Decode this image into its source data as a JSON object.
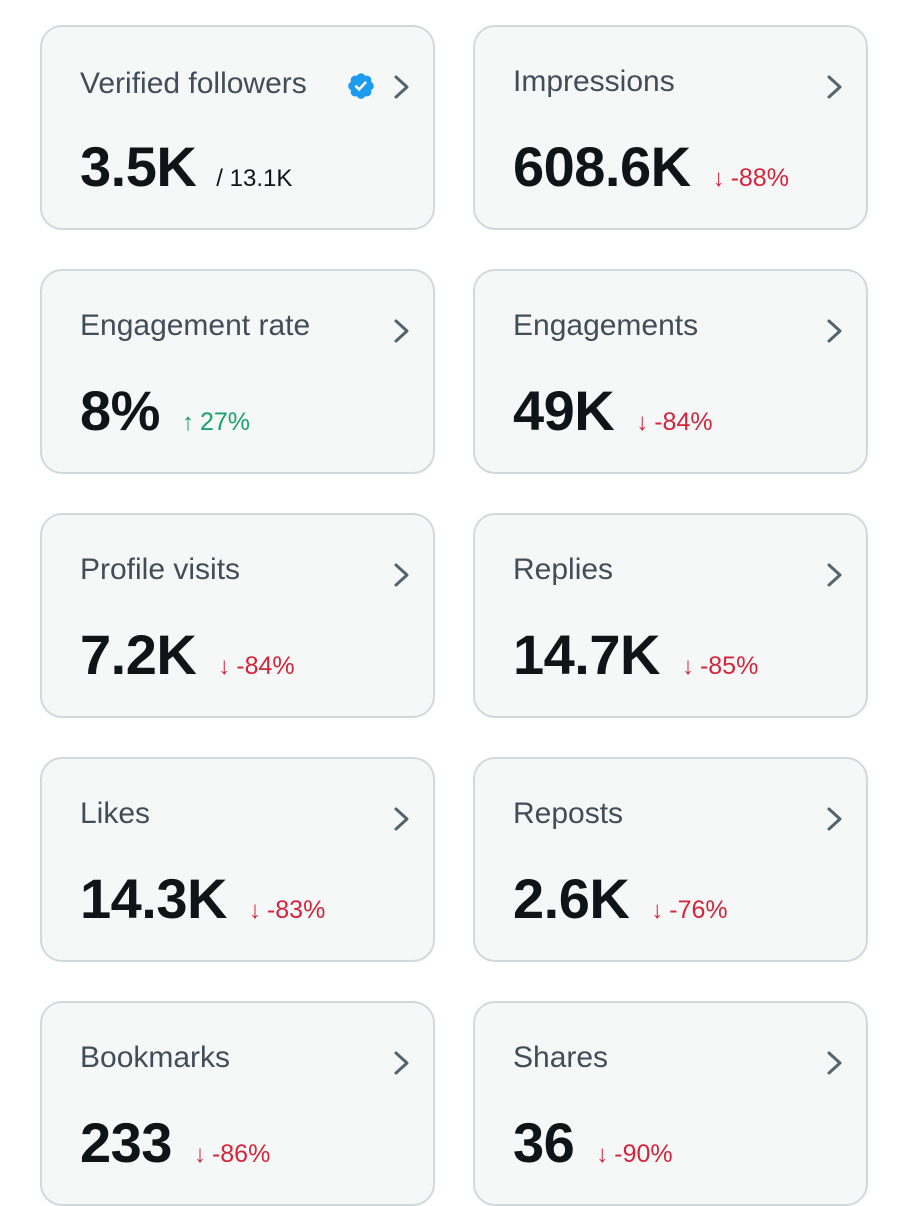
{
  "colors": {
    "card_bg": "#f6f7f7",
    "card_border": "#cfd9de",
    "label": "#414d59",
    "value": "#0f1419",
    "negative": "#d4243b",
    "positive": "#18a36a",
    "verified": "#1d9bf0"
  },
  "cards": [
    {
      "label": "Verified followers",
      "value": "3.5K",
      "sub": "/ 13.1K",
      "verified_icon": "verified-badge-icon"
    },
    {
      "label": "Impressions",
      "value": "608.6K",
      "delta": "-88%",
      "direction": "down"
    },
    {
      "label": "Engagement rate",
      "value": "8%",
      "delta": "27%",
      "direction": "up"
    },
    {
      "label": "Engagements",
      "value": "49K",
      "delta": "-84%",
      "direction": "down"
    },
    {
      "label": "Profile visits",
      "value": "7.2K",
      "delta": "-84%",
      "direction": "down"
    },
    {
      "label": "Replies",
      "value": "14.7K",
      "delta": "-85%",
      "direction": "down"
    },
    {
      "label": "Likes",
      "value": "14.3K",
      "delta": "-83%",
      "direction": "down"
    },
    {
      "label": "Reposts",
      "value": "2.6K",
      "delta": "-76%",
      "direction": "down"
    },
    {
      "label": "Bookmarks",
      "value": "233",
      "delta": "-86%",
      "direction": "down"
    },
    {
      "label": "Shares",
      "value": "36",
      "delta": "-90%",
      "direction": "down"
    }
  ],
  "icons": {
    "chevron": "chevron-right-icon",
    "arrow_down": "arrow-down-icon",
    "arrow_up": "arrow-up-icon"
  }
}
